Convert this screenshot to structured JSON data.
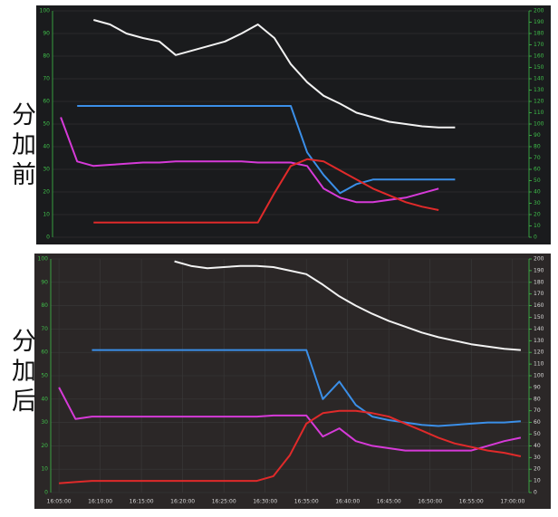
{
  "chart_data": [
    {
      "type": "line",
      "side_label": "分加前",
      "grid": true,
      "x": [
        5,
        7,
        9,
        11,
        13,
        15,
        17,
        19,
        21,
        23,
        25,
        27,
        29,
        31,
        33,
        35,
        37,
        39,
        41,
        43,
        45,
        47,
        49,
        51,
        53,
        55,
        57,
        59,
        61
      ],
      "xlim": [
        4,
        62
      ],
      "ylim": [
        0,
        100
      ],
      "yticks": [
        0,
        10,
        20,
        30,
        40,
        50,
        60,
        70,
        80,
        90,
        100
      ],
      "y2lim": [
        0,
        200
      ],
      "y2ticks": [
        0,
        10,
        20,
        30,
        40,
        50,
        60,
        70,
        80,
        90,
        100,
        110,
        120,
        130,
        140,
        150,
        160,
        170,
        180,
        190,
        200
      ],
      "series": [
        {
          "color": "#f2f2f2",
          "axis": "y2",
          "values": [
            null,
            null,
            192,
            188,
            180,
            176,
            173,
            161,
            165,
            169,
            173,
            180,
            188,
            176,
            153,
            137,
            125,
            118,
            110,
            106,
            102,
            100,
            98,
            97,
            97,
            null,
            null,
            null,
            null
          ]
        },
        {
          "color": "#3b8fe8",
          "axis": "y2",
          "values": [
            null,
            116,
            116,
            116,
            116,
            116,
            116,
            116,
            116,
            116,
            116,
            116,
            116,
            116,
            116,
            75,
            55,
            39,
            47,
            51,
            51,
            51,
            51,
            51,
            51,
            null,
            null,
            null,
            null
          ]
        },
        {
          "color": "#d63ad8",
          "axis": "y2",
          "values": [
            106,
            67,
            63,
            64,
            65,
            66,
            66,
            67,
            67,
            67,
            67,
            67,
            66,
            66,
            66,
            63,
            43,
            35,
            31,
            31,
            33,
            35,
            39,
            43,
            null,
            null,
            null,
            null,
            null
          ]
        },
        {
          "color": "#e02a2a",
          "axis": "y2",
          "values": [
            null,
            null,
            13,
            13,
            13,
            13,
            13,
            13,
            13,
            13,
            13,
            13,
            13,
            39,
            63,
            69,
            67,
            59,
            51,
            43,
            37,
            31,
            27,
            24,
            null,
            null,
            null,
            null,
            null
          ]
        }
      ]
    },
    {
      "type": "line",
      "side_label": "分加后",
      "grid": true,
      "x": [
        5,
        7,
        9,
        11,
        13,
        15,
        17,
        19,
        21,
        23,
        25,
        27,
        29,
        31,
        33,
        35,
        37,
        39,
        41,
        43,
        45,
        47,
        49,
        51,
        53,
        55,
        57,
        59,
        61
      ],
      "xlim": [
        4,
        62
      ],
      "xticks": [
        {
          "value": 5,
          "label": "16:05:00"
        },
        {
          "value": 10,
          "label": "16:10:00"
        },
        {
          "value": 15,
          "label": "16:15:00"
        },
        {
          "value": 20,
          "label": "16:20:00"
        },
        {
          "value": 25,
          "label": "16:25:00"
        },
        {
          "value": 30,
          "label": "16:30:00"
        },
        {
          "value": 35,
          "label": "16:35:00"
        },
        {
          "value": 40,
          "label": "16:40:00"
        },
        {
          "value": 45,
          "label": "16:45:00"
        },
        {
          "value": 50,
          "label": "16:50:00"
        },
        {
          "value": 55,
          "label": "16:55:00"
        },
        {
          "value": 60,
          "label": "17:00:00"
        }
      ],
      "ylim": [
        0,
        100
      ],
      "yticks": [
        0,
        10,
        20,
        30,
        40,
        50,
        60,
        70,
        80,
        90,
        100
      ],
      "y2lim": [
        0,
        200
      ],
      "y2ticks": [
        0,
        10,
        20,
        30,
        40,
        50,
        60,
        70,
        80,
        90,
        100,
        110,
        120,
        130,
        140,
        150,
        160,
        170,
        180,
        190,
        200
      ],
      "series": [
        {
          "color": "#f2f2f2",
          "axis": "y2",
          "values": [
            null,
            null,
            null,
            null,
            null,
            null,
            null,
            198,
            194,
            192,
            193,
            194,
            194,
            193,
            190,
            187,
            178,
            168,
            160,
            153,
            147,
            142,
            137,
            133,
            130,
            127,
            125,
            123,
            122
          ]
        },
        {
          "color": "#3b8fe8",
          "axis": "y2",
          "values": [
            null,
            null,
            122,
            122,
            122,
            122,
            122,
            122,
            122,
            122,
            122,
            122,
            122,
            122,
            122,
            122,
            80,
            95,
            75,
            65,
            62,
            60,
            58,
            57,
            58,
            59,
            60,
            60,
            61
          ]
        },
        {
          "color": "#d63ad8",
          "axis": "y2",
          "values": [
            90,
            63,
            65,
            65,
            65,
            65,
            65,
            65,
            65,
            65,
            65,
            65,
            65,
            66,
            66,
            66,
            48,
            55,
            44,
            40,
            38,
            36,
            36,
            36,
            36,
            36,
            40,
            44,
            47
          ]
        },
        {
          "color": "#e02a2a",
          "axis": "y2",
          "values": [
            8,
            9,
            10,
            10,
            10,
            10,
            10,
            10,
            10,
            10,
            10,
            10,
            10,
            14,
            32,
            59,
            68,
            70,
            70,
            68,
            65,
            59,
            53,
            47,
            42,
            39,
            36,
            34,
            31
          ]
        }
      ]
    }
  ]
}
